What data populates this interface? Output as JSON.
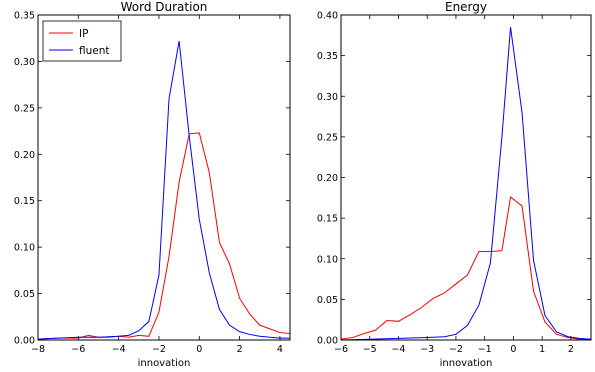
{
  "chart_data": [
    {
      "type": "line",
      "title": "Word Duration",
      "xlabel": "innovation",
      "ylabel": "",
      "xlim": [
        -8,
        4.5
      ],
      "ylim": [
        0,
        0.35
      ],
      "xticks": [
        -8,
        -6,
        -4,
        -2,
        0,
        2,
        4
      ],
      "xtick_labels": [
        "−8",
        "−6",
        "−4",
        "−2",
        "0",
        "2",
        "4"
      ],
      "yticks": [
        0.0,
        0.05,
        0.1,
        0.15,
        0.2,
        0.25,
        0.3,
        0.35
      ],
      "ytick_labels": [
        "0.00",
        "0.05",
        "0.10",
        "0.15",
        "0.20",
        "0.25",
        "0.30",
        "0.35"
      ],
      "grid": false,
      "legend": {
        "placement": "top-left",
        "entries": [
          "IP",
          "fluent"
        ]
      },
      "series": [
        {
          "name": "IP",
          "color": "#ff0000",
          "x": [
            -8,
            -7,
            -6,
            -5.5,
            -5,
            -4.5,
            -4,
            -3.5,
            -3,
            -2.5,
            -2,
            -1.5,
            -1,
            -0.5,
            0,
            0.5,
            1,
            1.5,
            2,
            2.5,
            3,
            3.5,
            4,
            4.5
          ],
          "y": [
            0.001,
            0.002,
            0.002,
            0.005,
            0.003,
            0.003,
            0.004,
            0.003,
            0.005,
            0.004,
            0.03,
            0.09,
            0.17,
            0.222,
            0.223,
            0.18,
            0.105,
            0.082,
            0.045,
            0.028,
            0.016,
            0.012,
            0.008,
            0.007
          ]
        },
        {
          "name": "fluent",
          "color": "#0000ff",
          "x": [
            -8,
            -7,
            -6,
            -5,
            -4,
            -3.5,
            -3,
            -2.5,
            -2,
            -1.5,
            -1,
            -0.5,
            0,
            0.5,
            1,
            1.5,
            2,
            2.5,
            3,
            3.5,
            4,
            4.5
          ],
          "y": [
            0.001,
            0.002,
            0.003,
            0.003,
            0.004,
            0.005,
            0.01,
            0.02,
            0.07,
            0.26,
            0.322,
            0.22,
            0.13,
            0.072,
            0.033,
            0.016,
            0.009,
            0.006,
            0.004,
            0.003,
            0.002,
            0.002
          ]
        }
      ]
    },
    {
      "type": "line",
      "title": "Energy",
      "xlabel": "innovation",
      "ylabel": "",
      "xlim": [
        -6,
        2.7
      ],
      "ylim": [
        0,
        0.4
      ],
      "xticks": [
        -6,
        -5,
        -4,
        -3,
        -2,
        -1,
        0,
        1,
        2
      ],
      "xtick_labels": [
        "−6",
        "−5",
        "−4",
        "−3",
        "−2",
        "−1",
        "0",
        "1",
        "2"
      ],
      "yticks": [
        0.0,
        0.05,
        0.1,
        0.15,
        0.2,
        0.25,
        0.3,
        0.35,
        0.4
      ],
      "ytick_labels": [
        "0.00",
        "0.05",
        "0.10",
        "0.15",
        "0.20",
        "0.25",
        "0.30",
        "0.35",
        "0.40"
      ],
      "grid": false,
      "series": [
        {
          "name": "IP",
          "color": "#ff0000",
          "x": [
            -6,
            -5.6,
            -5.2,
            -4.8,
            -4.4,
            -4,
            -3.6,
            -3.2,
            -2.8,
            -2.4,
            -2,
            -1.6,
            -1.2,
            -0.8,
            -0.4,
            -0.1,
            0.3,
            0.7,
            1.1,
            1.5,
            1.9,
            2.3,
            2.7
          ],
          "y": [
            0.001,
            0.003,
            0.008,
            0.012,
            0.024,
            0.023,
            0.031,
            0.04,
            0.051,
            0.058,
            0.069,
            0.08,
            0.109,
            0.109,
            0.11,
            0.176,
            0.165,
            0.06,
            0.022,
            0.007,
            0.003,
            0.001,
            0.001
          ]
        },
        {
          "name": "fluent",
          "color": "#0000ff",
          "x": [
            -6,
            -5,
            -4,
            -3,
            -2.4,
            -2,
            -1.6,
            -1.2,
            -0.8,
            -0.4,
            -0.1,
            0.3,
            0.7,
            1.1,
            1.5,
            1.9,
            2.3,
            2.7
          ],
          "y": [
            0.0,
            0.001,
            0.002,
            0.003,
            0.004,
            0.007,
            0.018,
            0.043,
            0.095,
            0.25,
            0.385,
            0.28,
            0.098,
            0.03,
            0.01,
            0.004,
            0.002,
            0.001
          ]
        }
      ]
    }
  ]
}
